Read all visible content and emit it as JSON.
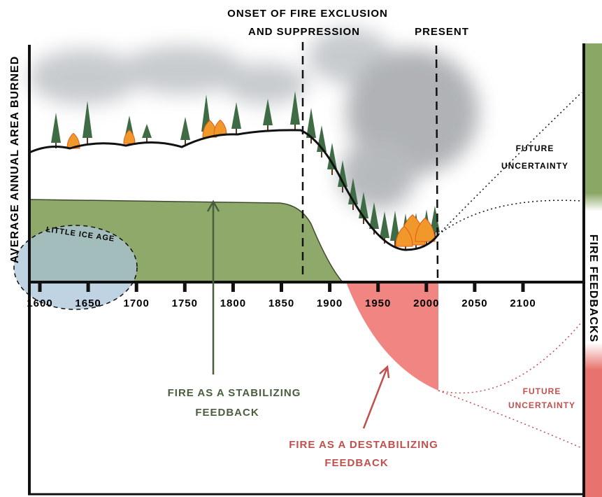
{
  "annotations": {
    "onset": [
      "ONSET OF FIRE EXCLUSION",
      "AND SUPPRESSION"
    ],
    "present": "PRESENT",
    "y_axis": "AVERAGE ANNUAL AREA BURNED",
    "little_ice_age": "LITTLE ICE AGE",
    "future_upper": [
      "FUTURE",
      "UNCERTAINTY"
    ],
    "future_lower": [
      "FUTURE",
      "UNCERTAINTY"
    ],
    "stabilizing": [
      "FIRE AS A STABILIZING",
      "FEEDBACK"
    ],
    "destabilizing": [
      "FIRE AS A DESTABILIZING",
      "FEEDBACK"
    ],
    "side_bar": "FIRE FEEDBACKS"
  },
  "x_axis": {
    "labels": [
      "1600",
      "1650",
      "1700",
      "1750",
      "1800",
      "1850",
      "1900",
      "1950",
      "2000",
      "2050",
      "2100"
    ]
  }
}
